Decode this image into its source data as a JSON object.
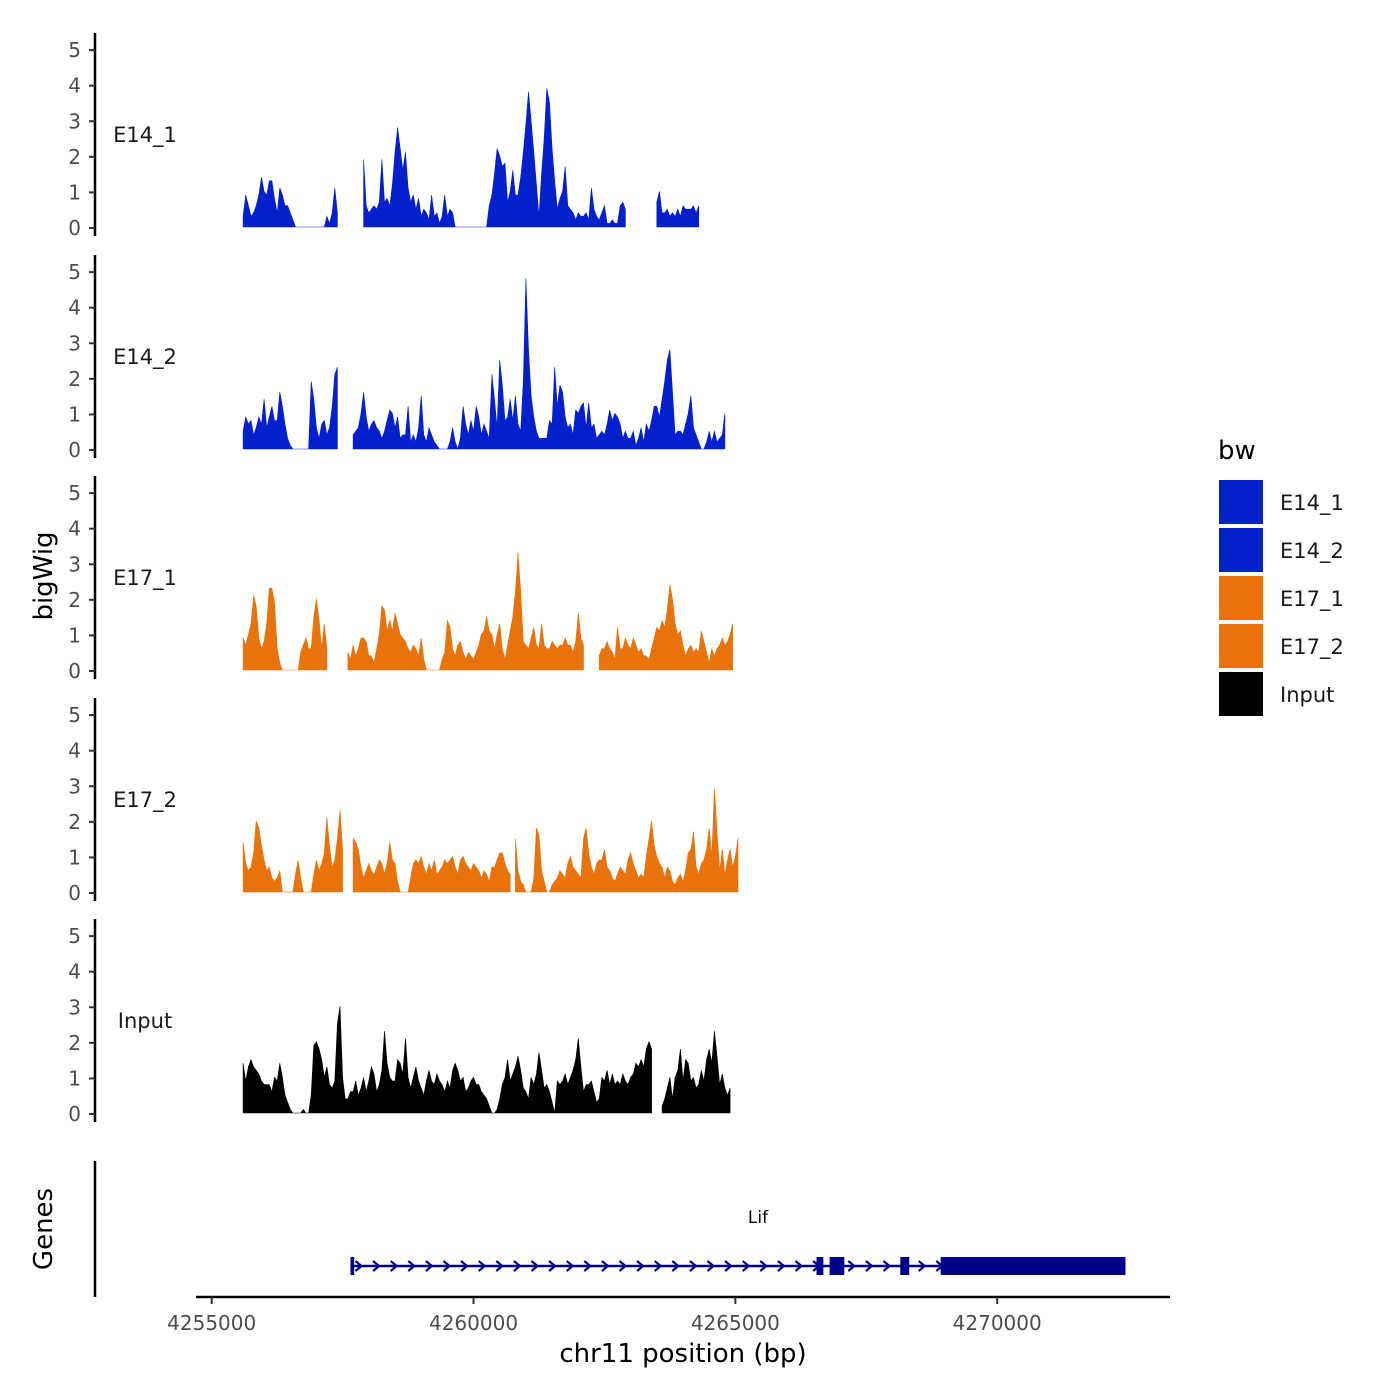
{
  "chart_data": {
    "type": "area",
    "title": "",
    "ylabel": "bigWig",
    "xlabel": "chr11 position (bp)",
    "genes_label": "Genes",
    "xlim": [
      4254700,
      4273300
    ],
    "ylim": [
      0,
      5.2
    ],
    "x_ticks": [
      4255000,
      4260000,
      4265000,
      4270000
    ],
    "x_tick_labels": [
      "4255000",
      "4260000",
      "4265000",
      "4270000"
    ],
    "y_ticks": [
      0,
      1,
      2,
      3,
      4,
      5
    ],
    "y_tick_labels": [
      "0",
      "1",
      "2",
      "3",
      "4",
      "5"
    ],
    "legend": {
      "title": "bw",
      "position": "right",
      "entries": [
        {
          "label": "E14_1",
          "color": "#0320cc"
        },
        {
          "label": "E14_2",
          "color": "#0320cc"
        },
        {
          "label": "E17_1",
          "color": "#e8730a"
        },
        {
          "label": "E17_2",
          "color": "#e8730a"
        },
        {
          "label": "Input",
          "color": "#000000"
        }
      ]
    },
    "series": [
      {
        "name": "E14_1",
        "color": "#0320cc",
        "start": 4255600,
        "step": 50,
        "gaps": [
          [
            4257400,
            4257900
          ],
          [
            4262900,
            4263500
          ]
        ],
        "values": [
          0.3,
          0.9,
          0.6,
          0.3,
          0.4,
          0.6,
          0.9,
          1.4,
          1.0,
          0.9,
          1.3,
          1.3,
          0.8,
          0.4,
          1.1,
          0.9,
          0.6,
          0.6,
          0.4,
          0.2,
          0.0,
          0.0,
          0.0,
          0.0,
          0.0,
          0.0,
          0.0,
          0.0,
          0.0,
          0.0,
          0.0,
          0.0,
          0.3,
          0.1,
          0.4,
          1.1,
          0.4,
          0.2,
          0.3,
          0.9,
          1.6,
          0.9,
          0.5,
          0.3,
          0.4,
          1.0,
          1.9,
          0.6,
          0.4,
          0.5,
          0.6,
          0.5,
          0.7,
          1.9,
          0.7,
          0.8,
          0.6,
          1.2,
          2.1,
          2.8,
          2.2,
          1.6,
          2.1,
          1.1,
          0.7,
          0.9,
          0.5,
          0.8,
          0.3,
          0.5,
          0.4,
          0.2,
          0.9,
          0.3,
          0.4,
          0.1,
          0.3,
          0.9,
          0.3,
          0.5,
          0.4,
          0.0,
          0.0,
          0.0,
          0.0,
          0.0,
          0.0,
          0.0,
          0.0,
          0.0,
          0.0,
          0.0,
          0.0,
          0.0,
          0.6,
          0.9,
          1.5,
          2.2,
          2.0,
          1.7,
          1.8,
          0.7,
          1.0,
          1.6,
          0.9,
          0.9,
          1.4,
          2.1,
          2.9,
          3.8,
          3.0,
          2.1,
          1.2,
          0.3,
          1.5,
          2.5,
          3.9,
          3.5,
          2.2,
          1.3,
          0.5,
          0.8,
          1.0,
          1.7,
          0.6,
          0.5,
          0.4,
          0.2,
          0.4,
          0.3,
          0.3,
          0.4,
          0.2,
          1.1,
          0.5,
          0.3,
          0.2,
          0.4,
          0.6,
          0.1,
          0.1,
          0.2,
          0.1,
          0.1,
          0.6,
          0.7,
          0.5,
          0.6,
          1.1,
          0.5,
          0.8,
          0.9,
          0.8,
          0.8,
          0.9,
          1.3,
          0.6,
          0.9,
          0.7,
          1.0,
          0.4,
          0.4,
          0.5,
          0.3,
          0.4,
          0.3,
          0.5,
          0.3,
          0.6,
          0.5,
          0.5,
          0.5,
          0.6,
          0.4,
          0.6
        ]
      },
      {
        "name": "E14_2",
        "color": "#0320cc",
        "start": 4255600,
        "step": 50,
        "gaps": [
          [
            4257400,
            4257700
          ]
        ],
        "values": [
          0.5,
          0.9,
          0.7,
          0.8,
          0.4,
          0.6,
          0.9,
          0.7,
          1.4,
          0.6,
          0.9,
          1.2,
          0.8,
          0.8,
          1.6,
          1.2,
          0.7,
          0.3,
          0.1,
          0.0,
          0.0,
          0.0,
          0.0,
          0.0,
          0.0,
          0.0,
          1.9,
          1.4,
          0.6,
          0.3,
          0.7,
          0.8,
          0.4,
          0.6,
          1.2,
          2.1,
          2.3,
          1.1,
          0.7,
          0.7,
          0.5,
          0.9,
          0.4,
          0.5,
          0.6,
          1.0,
          1.6,
          0.9,
          0.5,
          0.7,
          0.8,
          0.6,
          0.5,
          0.3,
          0.5,
          0.8,
          1.1,
          1.0,
          0.6,
          0.9,
          0.3,
          0.4,
          0.4,
          1.2,
          0.2,
          0.4,
          0.2,
          0.6,
          1.5,
          0.4,
          0.2,
          0.6,
          0.4,
          0.2,
          0.1,
          0.0,
          0.0,
          0.0,
          0.0,
          0.2,
          0.6,
          0.2,
          0.0,
          0.3,
          1.2,
          0.7,
          0.4,
          0.8,
          0.5,
          1.2,
          0.9,
          0.4,
          0.7,
          0.5,
          0.3,
          2.1,
          1.4,
          0.6,
          2.5,
          1.8,
          0.8,
          0.9,
          1.4,
          0.8,
          1.5,
          0.7,
          0.5,
          1.9,
          4.8,
          2.8,
          1.5,
          0.9,
          0.5,
          0.3,
          0.3,
          0.3,
          0.3,
          0.8,
          0.7,
          2.3,
          1.2,
          1.8,
          1.6,
          0.9,
          0.6,
          0.7,
          0.4,
          1.1,
          1.0,
          1.2,
          1.3,
          0.6,
          1.3,
          0.6,
          0.7,
          0.3,
          0.4,
          0.5,
          0.4,
          0.7,
          1.1,
          0.8,
          1.0,
          0.9,
          0.7,
          0.3,
          0.5,
          0.3,
          0.3,
          0.5,
          0.1,
          0.3,
          0.6,
          0.2,
          0.7,
          0.5,
          0.8,
          1.2,
          1.2,
          0.9,
          1.4,
          1.9,
          2.5,
          2.8,
          1.6,
          0.4,
          0.5,
          0.5,
          0.4,
          0.7,
          1.0,
          1.5,
          0.6,
          0.4,
          0.2,
          0.0,
          0.0,
          0.2,
          0.5,
          0.2,
          0.5,
          0.2,
          0.3,
          0.4,
          1.0
        ]
      },
      {
        "name": "E17_1",
        "color": "#e8730a",
        "start": 4255600,
        "step": 50,
        "gaps": [
          [
            4257200,
            4257600
          ],
          [
            4262100,
            4262400
          ]
        ],
        "values": [
          0.9,
          0.7,
          1.0,
          1.3,
          2.1,
          1.8,
          0.9,
          0.6,
          0.8,
          1.3,
          2.3,
          2.3,
          1.9,
          0.6,
          0.2,
          0.0,
          0.0,
          0.0,
          0.0,
          0.0,
          0.0,
          0.0,
          0.5,
          0.7,
          0.9,
          0.6,
          0.6,
          1.5,
          2.0,
          1.4,
          0.6,
          1.3,
          0.6,
          0.9,
          1.1,
          1.7,
          2.1,
          1.2,
          0.8,
          0.4,
          0.5,
          0.3,
          0.7,
          0.4,
          0.6,
          0.9,
          0.9,
          0.8,
          0.4,
          0.4,
          0.2,
          0.6,
          1.0,
          1.8,
          1.7,
          1.1,
          1.4,
          1.1,
          1.6,
          1.3,
          1.0,
          0.9,
          0.8,
          0.6,
          0.5,
          0.7,
          0.6,
          0.4,
          0.9,
          0.3,
          0.0,
          0.0,
          0.0,
          0.0,
          0.0,
          0.0,
          0.3,
          0.5,
          1.4,
          1.2,
          0.6,
          0.4,
          0.7,
          0.8,
          0.5,
          0.3,
          0.5,
          0.4,
          0.3,
          0.5,
          0.7,
          1.0,
          1.1,
          1.5,
          1.1,
          1.0,
          0.6,
          1.0,
          1.3,
          0.6,
          0.3,
          0.7,
          1.1,
          1.5,
          2.2,
          3.3,
          2.2,
          0.8,
          0.7,
          0.6,
          0.9,
          1.2,
          0.7,
          0.6,
          1.3,
          0.7,
          0.6,
          0.6,
          0.8,
          0.7,
          0.6,
          0.7,
          0.7,
          0.9,
          0.7,
          0.7,
          0.5,
          0.8,
          1.6,
          0.9,
          0.7,
          0.5,
          0.9,
          0.2,
          0.6,
          0.6,
          0.4,
          0.6,
          0.6,
          0.8,
          0.6,
          0.5,
          0.3,
          1.2,
          0.6,
          0.6,
          0.9,
          0.7,
          0.6,
          0.9,
          0.7,
          0.5,
          0.6,
          0.4,
          0.4,
          0.3,
          0.6,
          0.9,
          1.2,
          1.1,
          1.4,
          1.2,
          1.7,
          2.4,
          2.0,
          1.3,
          1.0,
          1.1,
          0.7,
          0.4,
          0.6,
          0.7,
          0.5,
          0.6,
          0.5,
          1.1,
          0.8,
          0.5,
          0.2,
          0.6,
          0.4,
          0.6,
          0.7,
          0.9,
          0.7,
          0.8,
          1.0,
          1.3
        ]
      },
      {
        "name": "E17_2",
        "color": "#e8730a",
        "start": 4255600,
        "step": 50,
        "gaps": [
          [
            4257500,
            4257700
          ],
          [
            4260700,
            4260800
          ]
        ],
        "values": [
          1.4,
          0.8,
          0.6,
          0.7,
          1.1,
          2.0,
          1.8,
          1.3,
          0.9,
          0.6,
          0.7,
          0.4,
          0.3,
          0.4,
          0.6,
          0.0,
          0.0,
          0.0,
          0.0,
          0.0,
          0.5,
          0.9,
          0.4,
          0.0,
          0.0,
          0.0,
          0.0,
          0.5,
          0.9,
          0.6,
          0.8,
          1.1,
          2.1,
          1.3,
          0.7,
          0.9,
          1.5,
          2.3,
          1.2,
          0.6,
          0.7,
          0.9,
          1.5,
          1.4,
          1.2,
          0.7,
          0.4,
          0.6,
          0.8,
          0.6,
          0.5,
          0.7,
          0.9,
          0.8,
          0.5,
          0.8,
          1.4,
          0.9,
          0.8,
          0.3,
          0.0,
          0.0,
          0.0,
          0.0,
          0.4,
          0.8,
          0.9,
          0.8,
          1.0,
          0.7,
          0.5,
          0.8,
          0.6,
          0.9,
          0.5,
          0.6,
          0.7,
          0.9,
          0.8,
          0.9,
          1.0,
          0.7,
          0.5,
          0.9,
          1.0,
          0.8,
          0.7,
          0.6,
          0.8,
          0.7,
          0.6,
          0.4,
          0.6,
          0.5,
          0.3,
          0.7,
          0.7,
          0.9,
          1.1,
          1.1,
          0.8,
          0.6,
          0.5,
          0.9,
          1.5,
          0.6,
          0.3,
          0.2,
          0.0,
          0.0,
          0.0,
          0.4,
          1.8,
          1.6,
          0.6,
          0.3,
          0.0,
          0.0,
          0.2,
          0.3,
          0.4,
          0.6,
          0.5,
          0.4,
          0.8,
          1.0,
          0.7,
          0.6,
          0.5,
          0.4,
          1.5,
          1.8,
          1.1,
          0.7,
          0.5,
          0.8,
          0.9,
          0.9,
          1.2,
          0.7,
          0.6,
          0.4,
          0.3,
          0.5,
          0.7,
          0.6,
          0.5,
          0.9,
          1.1,
          0.8,
          0.6,
          0.4,
          0.5,
          0.4,
          1.0,
          1.5,
          2.0,
          1.3,
          1.0,
          0.8,
          0.7,
          0.4,
          0.7,
          0.6,
          0.3,
          0.2,
          0.4,
          0.5,
          0.3,
          0.6,
          1.1,
          1.2,
          1.7,
          0.7,
          0.5,
          0.8,
          0.9,
          1.2,
          1.8,
          1.0,
          2.9,
          1.7,
          0.6,
          1.2,
          0.5,
          0.9,
          1.2,
          0.7,
          1.0,
          1.5
        ]
      },
      {
        "name": "Input",
        "color": "#000000",
        "start": 4255600,
        "step": 50,
        "gaps": [
          [
            4263400,
            4263600
          ]
        ],
        "values": [
          1.4,
          0.9,
          1.3,
          1.5,
          1.3,
          1.2,
          1.1,
          0.9,
          0.8,
          0.8,
          0.8,
          0.6,
          1.0,
          0.9,
          1.4,
          1.0,
          0.5,
          0.3,
          0.1,
          0.0,
          0.0,
          0.0,
          0.0,
          0.1,
          0.0,
          0.0,
          0.5,
          1.9,
          2.0,
          1.8,
          1.5,
          1.0,
          1.3,
          0.8,
          0.7,
          0.9,
          2.5,
          3.0,
          1.0,
          0.4,
          0.4,
          0.6,
          0.6,
          0.9,
          0.5,
          0.7,
          1.0,
          0.6,
          0.9,
          1.3,
          1.1,
          0.6,
          0.8,
          1.2,
          2.3,
          1.4,
          1.0,
          0.9,
          0.9,
          1.5,
          1.4,
          1.1,
          2.1,
          1.0,
          0.7,
          1.0,
          1.3,
          0.9,
          0.7,
          0.5,
          0.9,
          1.2,
          0.9,
          0.8,
          1.1,
          0.9,
          0.8,
          0.6,
          0.9,
          0.7,
          1.2,
          1.4,
          1.2,
          0.9,
          1.0,
          0.6,
          0.7,
          0.9,
          1.0,
          0.8,
          0.8,
          0.6,
          0.5,
          0.4,
          0.2,
          0.0,
          0.0,
          0.1,
          0.4,
          0.8,
          1.0,
          1.5,
          0.9,
          1.1,
          1.3,
          1.6,
          1.2,
          0.7,
          0.6,
          0.4,
          1.0,
          0.8,
          1.1,
          1.7,
          1.2,
          0.7,
          0.8,
          0.6,
          0.3,
          0.0,
          0.9,
          0.8,
          0.9,
          1.1,
          0.8,
          1.0,
          1.2,
          1.5,
          2.1,
          1.3,
          0.6,
          0.8,
          0.8,
          0.9,
          0.6,
          0.3,
          0.4,
          1.0,
          0.9,
          1.2,
          0.8,
          1.1,
          0.8,
          0.9,
          0.8,
          1.1,
          0.9,
          0.8,
          1.0,
          1.1,
          1.4,
          1.3,
          1.5,
          1.3,
          1.8,
          2.0,
          1.8,
          1.4,
          0.6,
          0.0,
          0.2,
          0.4,
          0.7,
          1.0,
          0.4,
          1.0,
          1.2,
          1.8,
          0.9,
          1.5,
          1.4,
          0.9,
          1.0,
          0.7,
          0.8,
          1.2,
          0.9,
          1.5,
          1.8,
          1.4,
          2.3,
          1.6,
          0.8,
          1.1,
          0.7,
          0.5,
          0.7
        ]
      }
    ],
    "genes": [
      {
        "name": "Lif",
        "color": "#00008b",
        "strand": "+",
        "start": 4257650,
        "end": 4272450,
        "exons": [
          [
            4257650,
            4257720
          ],
          [
            4266550,
            4266680
          ],
          [
            4266800,
            4267080
          ],
          [
            4268150,
            4268320
          ],
          [
            4268920,
            4272450
          ]
        ]
      }
    ]
  }
}
